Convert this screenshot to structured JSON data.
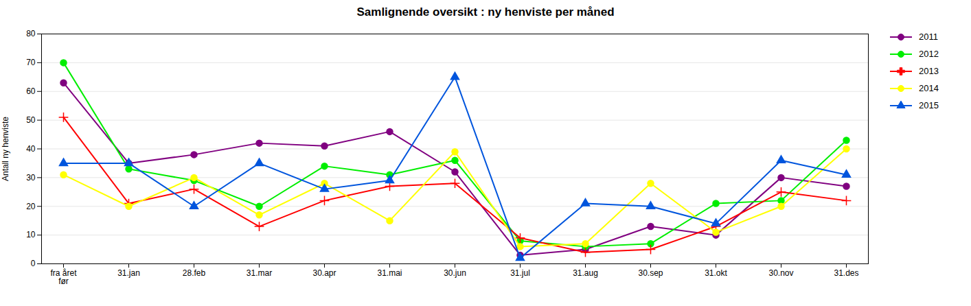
{
  "chart_data": {
    "type": "line",
    "title": "Samlignende oversikt : ny henviste per måned",
    "ylabel": "Antall ny henviste",
    "categories": [
      "fra året\nfør",
      "31.jan",
      "28.feb",
      "31.mar",
      "30.apr",
      "31.mai",
      "30.jun",
      "31.jul",
      "31.aug",
      "30.sep",
      "31.okt",
      "30.nov",
      "31.des"
    ],
    "series": [
      {
        "name": "2011",
        "color": "#800080",
        "marker": "circle",
        "values": [
          63,
          35,
          38,
          42,
          41,
          46,
          32,
          3,
          5,
          13,
          10,
          30,
          27
        ]
      },
      {
        "name": "2012",
        "color": "#00ee00",
        "marker": "circle",
        "values": [
          70,
          33,
          29,
          20,
          34,
          31,
          36,
          8,
          6,
          7,
          21,
          22,
          43
        ]
      },
      {
        "name": "2013",
        "color": "#ff0000",
        "marker": "plus",
        "values": [
          51,
          21,
          26,
          13,
          22,
          27,
          28,
          9,
          4,
          5,
          13,
          25,
          22
        ]
      },
      {
        "name": "2014",
        "color": "#ffff00",
        "marker": "circle",
        "values": [
          31,
          20,
          30,
          17,
          28,
          15,
          39,
          6,
          7,
          28,
          11,
          20,
          40
        ]
      },
      {
        "name": "2015",
        "color": "#0055dd",
        "marker": "triangle",
        "values": [
          35,
          35,
          20,
          35,
          26,
          29,
          65,
          2,
          21,
          20,
          14,
          36,
          31
        ]
      }
    ],
    "ylim": [
      0,
      80
    ],
    "yticks": [
      0,
      10,
      20,
      30,
      40,
      50,
      60,
      70,
      80
    ],
    "grid": true,
    "legend": "right"
  }
}
